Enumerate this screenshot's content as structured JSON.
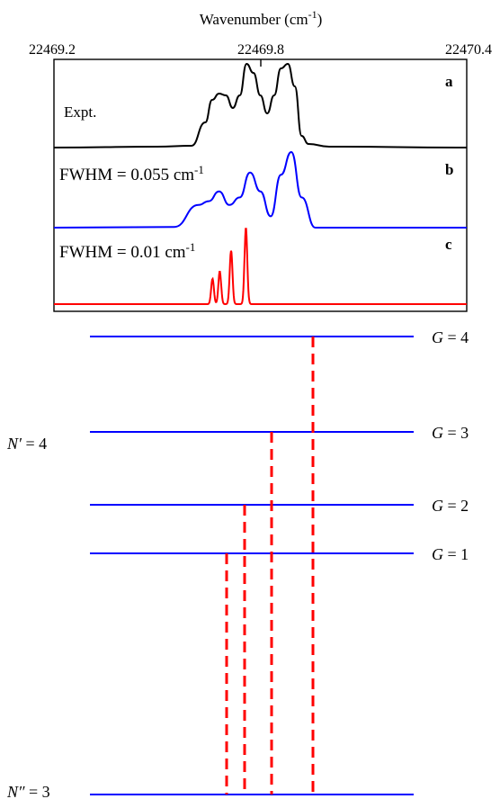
{
  "figure": {
    "top_axis": {
      "title": "Wavenumber (cm",
      "title_sup": "-1",
      "title_close": ")",
      "ticks": [
        "22469.2",
        "22469.8",
        "22470.4"
      ]
    },
    "panels": [
      {
        "letter": "a",
        "label": "Expt.",
        "label_sup": "",
        "color": "#000000"
      },
      {
        "letter": "b",
        "label": "FWHM = 0.055 cm",
        "label_sup": "-1",
        "color": "#0000ff"
      },
      {
        "letter": "c",
        "label": "FWHM = 0.01 cm",
        "label_sup": "-1",
        "color": "#ff0000"
      }
    ],
    "energy_diagram": {
      "upper_state": {
        "symbol": "N′",
        "eq": " = 4"
      },
      "lower_state": {
        "symbol": "N″",
        "eq": " = 3"
      },
      "levels": [
        {
          "symbol": "G",
          "eq": " = 4"
        },
        {
          "symbol": "G",
          "eq": " = 3"
        },
        {
          "symbol": "G",
          "eq": " = 2"
        },
        {
          "symbol": "G",
          "eq": " = 1"
        }
      ],
      "level_color": "#0000ff",
      "transition_color": "#ff0000"
    }
  },
  "chart_data": {
    "type": "line",
    "xlabel": "Wavenumber (cm-1)",
    "xlim": [
      22469.2,
      22470.4
    ],
    "x_ticks": [
      22469.2,
      22469.8,
      22470.4
    ],
    "y_axis_values_shown": false,
    "series": [
      {
        "name": "Expt.",
        "x": [
          22469.2,
          22469.5,
          22469.6,
          22469.64,
          22469.66,
          22469.68,
          22469.7,
          22469.72,
          22469.74,
          22469.76,
          22469.78,
          22469.8,
          22469.82,
          22469.84,
          22469.86,
          22469.88,
          22469.9,
          22469.92,
          22469.94,
          22470.0,
          22470.4
        ],
        "y": [
          0.02,
          0.03,
          0.04,
          0.3,
          0.55,
          0.62,
          0.6,
          0.46,
          0.6,
          0.95,
          0.85,
          0.6,
          0.4,
          0.6,
          0.9,
          0.95,
          0.7,
          0.15,
          0.06,
          0.03,
          0.02
        ]
      },
      {
        "name": "FWHM = 0.055 cm-1",
        "x": [
          22469.2,
          22469.55,
          22469.62,
          22469.65,
          22469.68,
          22469.71,
          22469.74,
          22469.77,
          22469.8,
          22469.83,
          22469.86,
          22469.89,
          22469.92,
          22469.96,
          22470.4
        ],
        "y": [
          0.0,
          0.01,
          0.3,
          0.35,
          0.48,
          0.3,
          0.4,
          0.73,
          0.48,
          0.15,
          0.7,
          1.0,
          0.4,
          0.0,
          0.0
        ]
      },
      {
        "name": "FWHM = 0.01 cm-1",
        "peaks_x": [
          22469.661,
          22469.682,
          22469.715,
          22469.758
        ],
        "peaks_y": [
          0.33,
          0.43,
          0.7,
          1.0
        ]
      }
    ]
  }
}
